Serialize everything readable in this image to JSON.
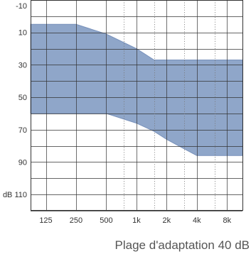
{
  "chart_data": {
    "type": "area",
    "caption": "Plage d'adaptation 40 dB",
    "ylabel_prefix": "dB",
    "y_reversed": true,
    "ylim": [
      -10,
      120
    ],
    "y_ticks": [
      -10,
      10,
      30,
      50,
      70,
      90,
      110
    ],
    "y_tick_labels": [
      "-10",
      "10",
      "30",
      "50",
      "70",
      "90",
      "110"
    ],
    "x_ticks": [
      125,
      250,
      500,
      1000,
      2000,
      4000,
      8000
    ],
    "x_tick_labels": [
      "125",
      "250",
      "500",
      "1k",
      "2k",
      "4k",
      "8k"
    ],
    "x_minor_ticks": [
      750,
      1500,
      3000,
      6000
    ],
    "xlim": [
      88,
      11400
    ],
    "x_scale": "log",
    "grid": true,
    "colors": {
      "band_fill": "#8fa6c9",
      "band_stroke": "#7891bb",
      "grid": "#333333",
      "minor_grid": "#777777",
      "text": "#333333",
      "caption": "#555555"
    },
    "band": {
      "x": [
        88,
        250,
        500,
        1000,
        1500,
        2000,
        4000,
        8000,
        11400
      ],
      "upper_db": [
        5,
        5,
        11,
        20,
        27,
        27,
        27,
        27,
        27
      ],
      "lower_db": [
        60,
        60,
        60,
        66,
        71,
        76,
        86,
        86,
        86
      ]
    }
  }
}
